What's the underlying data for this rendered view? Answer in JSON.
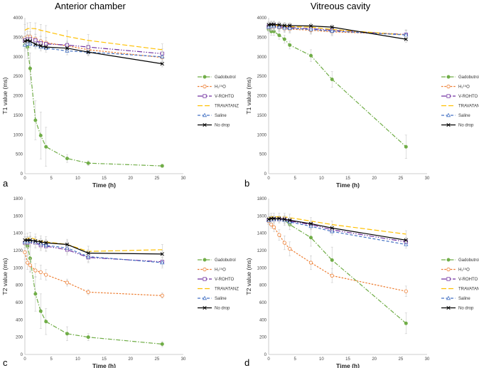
{
  "figure": {
    "col_titles": [
      "Anterior chamber",
      "Vitreous cavity"
    ]
  },
  "styles": {
    "Gadobutrol": {
      "color": "#70ad47",
      "dash": "6,2,1.5,2",
      "marker": "circle-filled"
    },
    "H2O": {
      "color": "#ed7d31",
      "dash": "2.5,1.8",
      "marker": "circle-open"
    },
    "V-ROHTO": {
      "color": "#7030a0",
      "dash": "7,2,1.5,2,1.5,2",
      "marker": "square-open"
    },
    "TRAVATANZ": {
      "color": "#ffc000",
      "dash": "7,3",
      "marker": "none"
    },
    "Saline": {
      "color": "#4472c4",
      "dash": "4,2.5",
      "marker": "triangle-open"
    },
    "No drop": {
      "color": "#000000",
      "dash": "",
      "marker": "x"
    }
  },
  "chart_data": [
    {
      "type": "line",
      "panel": "a",
      "title": "Anterior chamber",
      "xlabel": "Time (h)",
      "ylabel": "T1 value (ms)",
      "xlim": [
        0,
        30
      ],
      "ylim": [
        0,
        4000
      ],
      "xticks": [
        0,
        5,
        10,
        15,
        20,
        25,
        30
      ],
      "yticks": [
        0,
        500,
        1000,
        1500,
        2000,
        2500,
        3000,
        3500,
        4000
      ],
      "x": [
        0,
        0.5,
        1,
        2,
        3,
        4,
        8,
        12,
        26
      ],
      "legend": [
        "Gadobutrol",
        "H₂¹⁵O",
        "V-ROHTO",
        "TRAVATANZ",
        "Saline",
        "No drop"
      ],
      "series": [
        {
          "name": "Gadobutrol",
          "values": [
            3300,
            3250,
            2700,
            1370,
            980,
            690,
            390,
            270,
            200
          ],
          "err": [
            150,
            300,
            400,
            500,
            600,
            500,
            100,
            60,
            40
          ]
        },
        {
          "name": "H2O",
          "values": [
            3480,
            3520,
            3520,
            3460,
            3400,
            3360,
            3280,
            3180,
            2980
          ],
          "err": [
            120,
            120,
            120,
            120,
            120,
            120,
            120,
            120,
            150
          ]
        },
        {
          "name": "V-ROHTO",
          "values": [
            3420,
            3450,
            3450,
            3420,
            3350,
            3330,
            3300,
            3250,
            3080
          ],
          "err": [
            100,
            100,
            100,
            100,
            100,
            100,
            100,
            100,
            120
          ]
        },
        {
          "name": "TRAVATANZ",
          "values": [
            3680,
            3720,
            3730,
            3720,
            3680,
            3650,
            3520,
            3420,
            3180
          ],
          "err": [
            150,
            150,
            150,
            150,
            150,
            150,
            150,
            150,
            150
          ]
        },
        {
          "name": "Saline",
          "values": [
            3300,
            3330,
            3330,
            3300,
            3250,
            3220,
            3150,
            3120,
            3000
          ],
          "err": [
            100,
            100,
            100,
            100,
            100,
            100,
            100,
            100,
            120
          ]
        },
        {
          "name": "No drop",
          "values": [
            3400,
            3420,
            3400,
            3320,
            3280,
            3250,
            3220,
            3120,
            2820
          ],
          "err": [
            80,
            80,
            80,
            80,
            80,
            80,
            80,
            80,
            80
          ]
        }
      ]
    },
    {
      "type": "line",
      "panel": "b",
      "title": "Vitreous cavity",
      "xlabel": "Time (h)",
      "ylabel": "T1 value (ms)",
      "xlim": [
        0,
        30
      ],
      "ylim": [
        0,
        4000
      ],
      "xticks": [
        0,
        5,
        10,
        15,
        20,
        25,
        30
      ],
      "yticks": [
        0,
        500,
        1000,
        1500,
        2000,
        2500,
        3000,
        3500,
        4000
      ],
      "x": [
        0,
        0.5,
        1,
        2,
        3,
        4,
        8,
        12,
        26
      ],
      "legend": [
        "Gadobutrol",
        "H₂¹⁵O",
        "V-ROHTO",
        "TRAVATANZ",
        "Saline",
        "No drop"
      ],
      "series": [
        {
          "name": "Gadobutrol",
          "values": [
            3700,
            3650,
            3650,
            3550,
            3450,
            3300,
            3030,
            2420,
            690
          ],
          "err": [
            100,
            100,
            100,
            100,
            100,
            100,
            150,
            200,
            300
          ]
        },
        {
          "name": "H2O",
          "values": [
            3750,
            3770,
            3770,
            3750,
            3720,
            3710,
            3680,
            3640,
            3570
          ],
          "err": [
            100,
            100,
            100,
            100,
            100,
            100,
            100,
            100,
            100
          ]
        },
        {
          "name": "V-ROHTO",
          "values": [
            3780,
            3800,
            3800,
            3780,
            3760,
            3750,
            3720,
            3680,
            3570
          ],
          "err": [
            100,
            100,
            100,
            100,
            100,
            100,
            100,
            100,
            120
          ]
        },
        {
          "name": "TRAVATANZ",
          "values": [
            3800,
            3820,
            3820,
            3800,
            3780,
            3770,
            3760,
            3700,
            3560
          ],
          "err": [
            100,
            100,
            100,
            100,
            100,
            100,
            100,
            100,
            120
          ]
        },
        {
          "name": "Saline",
          "values": [
            3760,
            3780,
            3780,
            3760,
            3740,
            3730,
            3700,
            3660,
            3560
          ],
          "err": [
            100,
            100,
            100,
            100,
            100,
            100,
            100,
            100,
            120
          ]
        },
        {
          "name": "No drop",
          "values": [
            3820,
            3830,
            3830,
            3820,
            3800,
            3800,
            3790,
            3760,
            3450
          ],
          "err": [
            60,
            60,
            60,
            60,
            60,
            60,
            60,
            60,
            80
          ]
        }
      ]
    },
    {
      "type": "line",
      "panel": "c",
      "title": "",
      "xlabel": "Time (h)",
      "ylabel": "T2 value (ms)",
      "xlim": [
        0,
        30
      ],
      "ylim": [
        0,
        1800
      ],
      "xticks": [
        0,
        5,
        10,
        15,
        20,
        25,
        30
      ],
      "yticks": [
        0,
        200,
        400,
        600,
        800,
        1000,
        1200,
        1400,
        1600,
        1800
      ],
      "x": [
        0,
        0.5,
        1,
        2,
        3,
        4,
        8,
        12,
        26
      ],
      "legend": [
        "Gadobutrol",
        "H₂¹⁵O",
        "V-ROHTO",
        "TRAVATANZ",
        "Saline",
        "No drop"
      ],
      "series": [
        {
          "name": "Gadobutrol",
          "values": [
            1280,
            1250,
            1110,
            700,
            500,
            380,
            240,
            200,
            120
          ],
          "err": [
            80,
            100,
            150,
            200,
            200,
            150,
            80,
            40,
            30
          ]
        },
        {
          "name": "H2O",
          "values": [
            1180,
            1060,
            1030,
            970,
            950,
            920,
            830,
            720,
            680
          ],
          "err": [
            80,
            80,
            80,
            80,
            80,
            60,
            40,
            30,
            30
          ]
        },
        {
          "name": "V-ROHTO",
          "values": [
            1290,
            1290,
            1300,
            1290,
            1260,
            1250,
            1210,
            1120,
            1070
          ],
          "err": [
            60,
            60,
            60,
            60,
            60,
            60,
            60,
            60,
            50
          ]
        },
        {
          "name": "TRAVATANZ",
          "values": [
            1330,
            1340,
            1350,
            1330,
            1310,
            1300,
            1270,
            1190,
            1210
          ],
          "err": [
            60,
            60,
            60,
            60,
            60,
            60,
            60,
            60,
            60
          ]
        },
        {
          "name": "Saline",
          "values": [
            1300,
            1300,
            1310,
            1300,
            1280,
            1260,
            1230,
            1130,
            1060
          ],
          "err": [
            60,
            60,
            60,
            60,
            60,
            60,
            60,
            60,
            60
          ]
        },
        {
          "name": "No drop",
          "values": [
            1320,
            1320,
            1320,
            1310,
            1300,
            1290,
            1270,
            1170,
            1160
          ],
          "err": [
            40,
            40,
            40,
            40,
            40,
            40,
            40,
            40,
            40
          ]
        }
      ]
    },
    {
      "type": "line",
      "panel": "d",
      "title": "",
      "xlabel": "Time (h)",
      "ylabel": "T2 value (ms)",
      "xlim": [
        0,
        30
      ],
      "ylim": [
        0,
        1800
      ],
      "xticks": [
        0,
        5,
        10,
        15,
        20,
        25,
        30
      ],
      "yticks": [
        0,
        200,
        400,
        600,
        800,
        1000,
        1200,
        1400,
        1600,
        1800
      ],
      "x": [
        0,
        0.5,
        1,
        2,
        3,
        4,
        8,
        12,
        26
      ],
      "legend": [
        "Gadobutrol",
        "H₂¹⁵O",
        "V-ROHTO",
        "TRAVATANZ",
        "Saline",
        "No drop"
      ],
      "series": [
        {
          "name": "Gadobutrol",
          "values": [
            1560,
            1560,
            1560,
            1560,
            1550,
            1500,
            1350,
            1090,
            360
          ],
          "err": [
            40,
            40,
            40,
            40,
            60,
            60,
            100,
            150,
            120
          ]
        },
        {
          "name": "H2O",
          "values": [
            1540,
            1500,
            1470,
            1380,
            1290,
            1220,
            1060,
            910,
            730
          ],
          "err": [
            40,
            40,
            50,
            60,
            80,
            80,
            80,
            80,
            60
          ]
        },
        {
          "name": "V-ROHTO",
          "values": [
            1550,
            1560,
            1560,
            1560,
            1560,
            1540,
            1500,
            1440,
            1300
          ],
          "err": [
            40,
            40,
            40,
            40,
            40,
            40,
            40,
            40,
            40
          ]
        },
        {
          "name": "TRAVATANZ",
          "values": [
            1580,
            1590,
            1590,
            1590,
            1590,
            1580,
            1540,
            1500,
            1390
          ],
          "err": [
            40,
            40,
            40,
            40,
            40,
            40,
            40,
            40,
            40
          ]
        },
        {
          "name": "Saline",
          "values": [
            1550,
            1560,
            1560,
            1560,
            1550,
            1530,
            1480,
            1420,
            1270
          ],
          "err": [
            40,
            40,
            40,
            40,
            40,
            40,
            40,
            40,
            40
          ]
        },
        {
          "name": "No drop",
          "values": [
            1560,
            1570,
            1570,
            1570,
            1560,
            1550,
            1510,
            1460,
            1320
          ],
          "err": [
            30,
            30,
            30,
            30,
            30,
            30,
            30,
            30,
            30
          ]
        }
      ]
    }
  ]
}
